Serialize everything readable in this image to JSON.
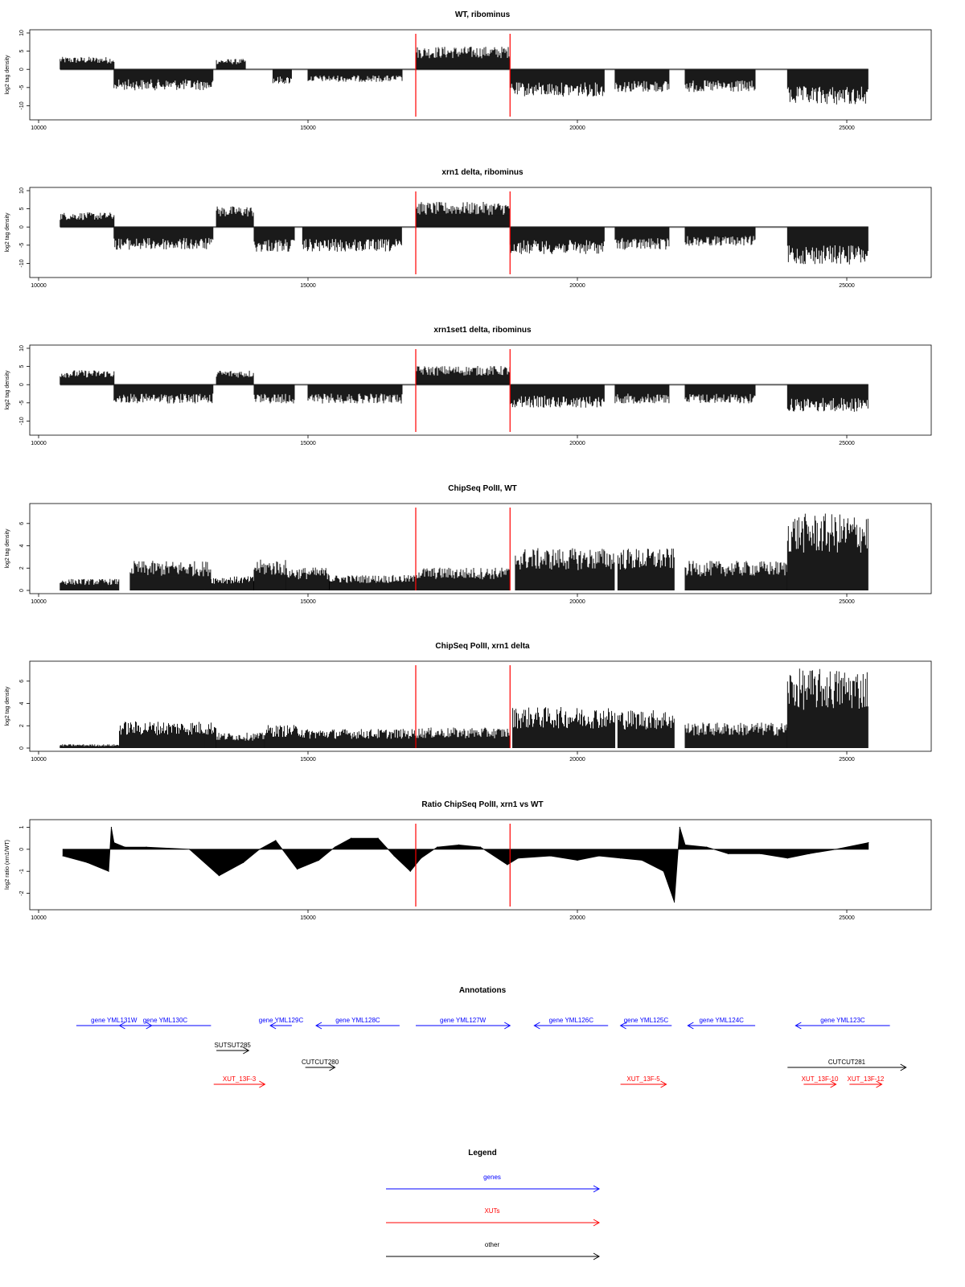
{
  "figure": {
    "panels": [
      {
        "title": "WT, ribominus",
        "ylabel": "log2 tag density",
        "yticks": [
          "-10",
          "-5",
          "0",
          "5",
          "10"
        ]
      },
      {
        "title": "xrn1 delta, ribominus",
        "ylabel": "log2 tag density",
        "yticks": [
          "-10",
          "-5",
          "0",
          "5",
          "10"
        ]
      },
      {
        "title": "xrn1set1 delta, ribominus",
        "ylabel": "log2 tag density",
        "yticks": [
          "-10",
          "-5",
          "0",
          "5",
          "10"
        ]
      },
      {
        "title": "ChipSeq PolII, WT",
        "ylabel": "log2 tag density",
        "yticks": [
          "0",
          "2",
          "4",
          "6"
        ]
      },
      {
        "title": "ChipSeq PolII, xrn1 delta",
        "ylabel": "log2 tag density",
        "yticks": [
          "0",
          "2",
          "4",
          "6"
        ]
      },
      {
        "title": "Ratio ChipSeq PolII, xrn1 vs WT",
        "ylabel": "log2 ratio (xrn1/WT)",
        "yticks": [
          "-2",
          "-1",
          "0",
          "1"
        ]
      }
    ],
    "xticks": [
      "10000",
      "15000",
      "20000",
      "25000"
    ],
    "annotations": {
      "title": "Annotations",
      "features": [
        {
          "label": "gene YML131W",
          "type": "genes",
          "strand": "+",
          "start": 10700,
          "end": 12100
        },
        {
          "label": "gene YML130C",
          "type": "genes",
          "strand": "-",
          "start": 11500,
          "end": 13200
        },
        {
          "label": "gene YML129C",
          "type": "genes",
          "strand": "-",
          "start": 14300,
          "end": 14700
        },
        {
          "label": "gene YML128C",
          "type": "genes",
          "strand": "-",
          "start": 15150,
          "end": 16700
        },
        {
          "label": "gene YML127W",
          "type": "genes",
          "strand": "+",
          "start": 17000,
          "end": 18750
        },
        {
          "label": "gene YML126C",
          "type": "genes",
          "strand": "-",
          "start": 19200,
          "end": 20570
        },
        {
          "label": "gene YML125C",
          "type": "genes",
          "strand": "-",
          "start": 20800,
          "end": 21750
        },
        {
          "label": "gene YML124C",
          "type": "genes",
          "strand": "-",
          "start": 22050,
          "end": 23300
        },
        {
          "label": "gene YML123C",
          "type": "genes",
          "strand": "-",
          "start": 24050,
          "end": 25800
        },
        {
          "label": "SUTSUT285",
          "type": "other",
          "strand": "+",
          "start": 13300,
          "end": 13900
        },
        {
          "label": "CUTCUT280",
          "type": "other",
          "strand": "+",
          "start": 14950,
          "end": 15500
        },
        {
          "label": "CUTCUT281",
          "type": "other",
          "strand": "+",
          "start": 23900,
          "end": 26100
        },
        {
          "label": "XUT_13F-3",
          "type": "XUTs",
          "strand": "+",
          "start": 13250,
          "end": 14200
        },
        {
          "label": "XUT_13F-5",
          "type": "XUTs",
          "strand": "+",
          "start": 20800,
          "end": 21650
        },
        {
          "label": "XUT_13F-10",
          "type": "XUTs",
          "strand": "+",
          "start": 24200,
          "end": 24800
        },
        {
          "label": "XUT_13F-12",
          "type": "XUTs",
          "strand": "+",
          "start": 25050,
          "end": 25650
        }
      ]
    },
    "legend": {
      "title": "Legend",
      "items": [
        {
          "label": "genes",
          "color": "#0000ff"
        },
        {
          "label": "XUTs",
          "color": "#ff0000"
        },
        {
          "label": "other",
          "color": "#000000"
        }
      ]
    }
  },
  "chart_data": [
    {
      "type": "bar",
      "title": "WT, ribominus",
      "xlabel": "",
      "ylabel": "log2 tag density",
      "xlim": [
        10000,
        26000
      ],
      "ylim": [
        -13,
        10
      ],
      "markers_x": [
        17000,
        18750
      ],
      "segments": [
        {
          "start": 10400,
          "end": 11400,
          "level": 3.0
        },
        {
          "start": 11400,
          "end": 13250,
          "level": -5.0
        },
        {
          "start": 13300,
          "end": 13850,
          "level": 2.5
        },
        {
          "start": 14350,
          "end": 14700,
          "level": -3.5
        },
        {
          "start": 15000,
          "end": 16750,
          "level": -3.0
        },
        {
          "start": 17000,
          "end": 18750,
          "level": 5.5
        },
        {
          "start": 18750,
          "end": 20500,
          "level": -6.5
        },
        {
          "start": 20700,
          "end": 21700,
          "level": -5.5
        },
        {
          "start": 22000,
          "end": 23300,
          "level": -5.5
        },
        {
          "start": 23900,
          "end": 25400,
          "level": -8.5
        }
      ]
    },
    {
      "type": "bar",
      "title": "xrn1 delta, ribominus",
      "xlabel": "",
      "ylabel": "log2 tag density",
      "xlim": [
        10000,
        26000
      ],
      "ylim": [
        -13,
        10
      ],
      "markers_x": [
        17000,
        18750
      ],
      "segments": [
        {
          "start": 10400,
          "end": 11400,
          "level": 3.5
        },
        {
          "start": 11400,
          "end": 13250,
          "level": -5.5
        },
        {
          "start": 13300,
          "end": 14000,
          "level": 5.0
        },
        {
          "start": 14000,
          "end": 14750,
          "level": -6.0
        },
        {
          "start": 14900,
          "end": 16750,
          "level": -6.0
        },
        {
          "start": 17000,
          "end": 18750,
          "level": 6.0
        },
        {
          "start": 18750,
          "end": 20500,
          "level": -6.5
        },
        {
          "start": 20700,
          "end": 21700,
          "level": -5.5
        },
        {
          "start": 22000,
          "end": 23300,
          "level": -4.5
        },
        {
          "start": 23900,
          "end": 25400,
          "level": -9.0
        }
      ]
    },
    {
      "type": "bar",
      "title": "xrn1set1 delta, ribominus",
      "xlabel": "",
      "ylabel": "log2 tag density",
      "xlim": [
        10000,
        26000
      ],
      "ylim": [
        -13,
        10
      ],
      "markers_x": [
        17000,
        18750
      ],
      "segments": [
        {
          "start": 10400,
          "end": 11400,
          "level": 3.5
        },
        {
          "start": 11400,
          "end": 13250,
          "level": -4.5
        },
        {
          "start": 13300,
          "end": 14000,
          "level": 3.5
        },
        {
          "start": 14000,
          "end": 14750,
          "level": -4.5
        },
        {
          "start": 15000,
          "end": 16750,
          "level": -4.5
        },
        {
          "start": 17000,
          "end": 18750,
          "level": 4.5
        },
        {
          "start": 18750,
          "end": 20500,
          "level": -5.5
        },
        {
          "start": 20700,
          "end": 21700,
          "level": -4.5
        },
        {
          "start": 22000,
          "end": 23300,
          "level": -4.5
        },
        {
          "start": 23900,
          "end": 25400,
          "level": -6.5
        }
      ]
    },
    {
      "type": "bar",
      "title": "ChipSeq PolII, WT",
      "xlabel": "",
      "ylabel": "log2 tag density",
      "xlim": [
        10000,
        26000
      ],
      "ylim": [
        0,
        7.5
      ],
      "markers_x": [
        17000,
        18750
      ],
      "segments": [
        {
          "start": 10400,
          "end": 11500,
          "level": 0.9
        },
        {
          "start": 11700,
          "end": 13200,
          "level": 2.3
        },
        {
          "start": 13200,
          "end": 14000,
          "level": 1.1
        },
        {
          "start": 14000,
          "end": 14600,
          "level": 2.4
        },
        {
          "start": 14600,
          "end": 15400,
          "level": 1.8
        },
        {
          "start": 15400,
          "end": 17000,
          "level": 1.2
        },
        {
          "start": 17000,
          "end": 18750,
          "level": 1.8
        },
        {
          "start": 18850,
          "end": 20700,
          "level": 3.3
        },
        {
          "start": 20750,
          "end": 21800,
          "level": 3.3
        },
        {
          "start": 22000,
          "end": 23900,
          "level": 2.3
        },
        {
          "start": 23900,
          "end": 25400,
          "level": 6.0
        }
      ]
    },
    {
      "type": "bar",
      "title": "ChipSeq PolII, xrn1 delta",
      "xlabel": "",
      "ylabel": "log2 tag density",
      "xlim": [
        10000,
        26000
      ],
      "ylim": [
        0,
        7.5
      ],
      "markers_x": [
        17000,
        18750
      ],
      "segments": [
        {
          "start": 10400,
          "end": 11500,
          "level": 0.3
        },
        {
          "start": 11500,
          "end": 13300,
          "level": 2.1
        },
        {
          "start": 13300,
          "end": 14200,
          "level": 1.2
        },
        {
          "start": 14200,
          "end": 14900,
          "level": 1.8
        },
        {
          "start": 14900,
          "end": 17000,
          "level": 1.5
        },
        {
          "start": 17000,
          "end": 18750,
          "level": 1.6
        },
        {
          "start": 18800,
          "end": 20700,
          "level": 3.2
        },
        {
          "start": 20750,
          "end": 21800,
          "level": 3.0
        },
        {
          "start": 22000,
          "end": 23900,
          "level": 2.0
        },
        {
          "start": 23900,
          "end": 25400,
          "level": 6.2
        }
      ]
    },
    {
      "type": "area",
      "title": "Ratio ChipSeq PolII, xrn1 vs WT",
      "xlabel": "",
      "ylabel": "log2 ratio (xrn1/WT)",
      "xlim": [
        10000,
        26000
      ],
      "ylim": [
        -2.6,
        1.2
      ],
      "markers_x": [
        17000,
        18750
      ],
      "x": [
        10450,
        10900,
        11300,
        11350,
        11400,
        11600,
        12000,
        12800,
        13350,
        13800,
        14100,
        14400,
        14800,
        15200,
        15500,
        15800,
        16300,
        16600,
        16900,
        17100,
        17400,
        17800,
        18200,
        18700,
        18900,
        19500,
        20000,
        20400,
        20800,
        21200,
        21600,
        21800,
        21900,
        22000,
        22400,
        22800,
        23400,
        23900,
        24300,
        24800,
        25400
      ],
      "y": [
        -0.3,
        -0.6,
        -1.0,
        1.0,
        0.3,
        0.1,
        0.1,
        0.0,
        -1.2,
        -0.6,
        0.0,
        0.4,
        -0.9,
        -0.5,
        0.1,
        0.5,
        0.5,
        -0.3,
        -1.0,
        -0.4,
        0.1,
        0.2,
        0.1,
        -0.7,
        -0.4,
        -0.3,
        -0.5,
        -0.3,
        -0.4,
        -0.5,
        -1.0,
        -2.4,
        1.0,
        0.2,
        0.1,
        -0.2,
        -0.2,
        -0.4,
        -0.2,
        0.0,
        0.3
      ]
    }
  ]
}
